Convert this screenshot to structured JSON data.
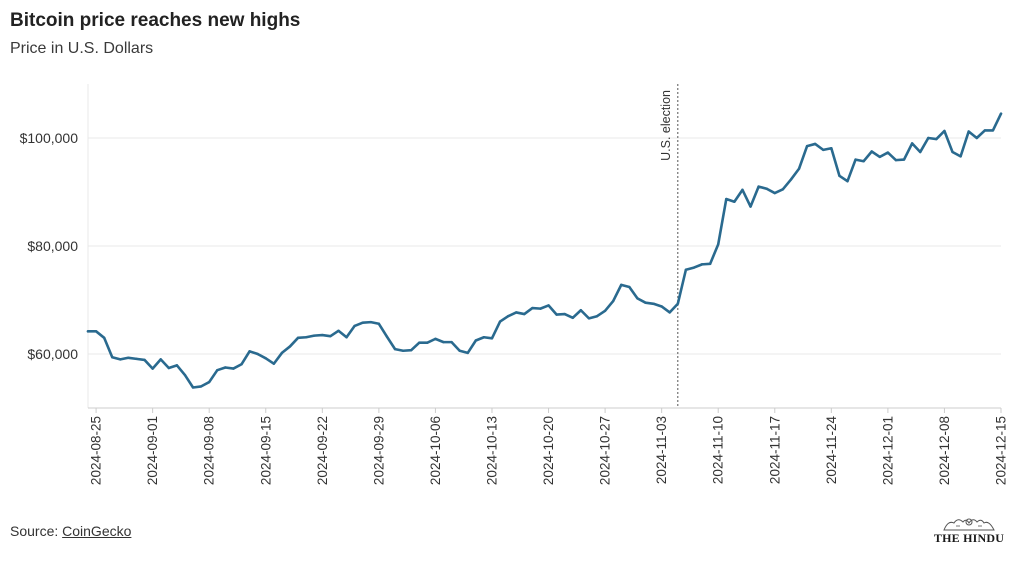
{
  "header": {
    "title": "Bitcoin price reaches new highs",
    "subtitle": "Price in U.S. Dollars"
  },
  "footer": {
    "source_prefix": "Source: ",
    "source_link": "CoinGecko",
    "logo_text": "THE HINDU"
  },
  "colors": {
    "line": "#2a6a8f",
    "grid": "#e8e8e8",
    "axis": "#cccccc",
    "text": "#333333"
  },
  "chart_data": {
    "type": "line",
    "title": "Bitcoin price reaches new highs",
    "subtitle": "Price in U.S. Dollars",
    "xlabel": "",
    "ylabel": "",
    "x_start": "2024-08-24",
    "x_end": "2024-12-15",
    "xlim": [
      "2024-08-24",
      "2024-12-15"
    ],
    "ylim": [
      50000,
      110000
    ],
    "y_ticks": [
      60000,
      80000,
      100000
    ],
    "y_tick_labels": [
      "$60,000",
      "$80,000",
      "$100,000"
    ],
    "x_ticks": [
      "2024-08-25",
      "2024-09-01",
      "2024-09-08",
      "2024-09-15",
      "2024-09-22",
      "2024-09-29",
      "2024-10-06",
      "2024-10-13",
      "2024-10-20",
      "2024-10-27",
      "2024-11-03",
      "2024-11-10",
      "2024-11-17",
      "2024-11-24",
      "2024-12-01",
      "2024-12-08",
      "2024-12-15"
    ],
    "grid": "horizontal",
    "annotations": [
      {
        "date": "2024-11-05",
        "label": "U.S. election",
        "style": "dotted vertical line"
      }
    ],
    "series": [
      {
        "name": "",
        "x": [
          "2024-08-24",
          "2024-08-25",
          "2024-08-26",
          "2024-08-27",
          "2024-08-28",
          "2024-08-29",
          "2024-08-30",
          "2024-08-31",
          "2024-09-01",
          "2024-09-02",
          "2024-09-03",
          "2024-09-04",
          "2024-09-05",
          "2024-09-06",
          "2024-09-07",
          "2024-09-08",
          "2024-09-09",
          "2024-09-10",
          "2024-09-11",
          "2024-09-12",
          "2024-09-13",
          "2024-09-14",
          "2024-09-15",
          "2024-09-16",
          "2024-09-17",
          "2024-09-18",
          "2024-09-19",
          "2024-09-20",
          "2024-09-21",
          "2024-09-22",
          "2024-09-23",
          "2024-09-24",
          "2024-09-25",
          "2024-09-26",
          "2024-09-27",
          "2024-09-28",
          "2024-09-29",
          "2024-09-30",
          "2024-10-01",
          "2024-10-02",
          "2024-10-03",
          "2024-10-04",
          "2024-10-05",
          "2024-10-06",
          "2024-10-07",
          "2024-10-08",
          "2024-10-09",
          "2024-10-10",
          "2024-10-11",
          "2024-10-12",
          "2024-10-13",
          "2024-10-14",
          "2024-10-15",
          "2024-10-16",
          "2024-10-17",
          "2024-10-18",
          "2024-10-19",
          "2024-10-20",
          "2024-10-21",
          "2024-10-22",
          "2024-10-23",
          "2024-10-24",
          "2024-10-25",
          "2024-10-26",
          "2024-10-27",
          "2024-10-28",
          "2024-10-29",
          "2024-10-30",
          "2024-10-31",
          "2024-11-01",
          "2024-11-02",
          "2024-11-03",
          "2024-11-04",
          "2024-11-05",
          "2024-11-06",
          "2024-11-07",
          "2024-11-08",
          "2024-11-09",
          "2024-11-10",
          "2024-11-11",
          "2024-11-12",
          "2024-11-13",
          "2024-11-14",
          "2024-11-15",
          "2024-11-16",
          "2024-11-17",
          "2024-11-18",
          "2024-11-19",
          "2024-11-20",
          "2024-11-21",
          "2024-11-22",
          "2024-11-23",
          "2024-11-24",
          "2024-11-25",
          "2024-11-26",
          "2024-11-27",
          "2024-11-28",
          "2024-11-29",
          "2024-11-30",
          "2024-12-01",
          "2024-12-02",
          "2024-12-03",
          "2024-12-04",
          "2024-12-05",
          "2024-12-06",
          "2024-12-07",
          "2024-12-08",
          "2024-12-09",
          "2024-12-10",
          "2024-12-11",
          "2024-12-12",
          "2024-12-13",
          "2024-12-14",
          "2024-12-15"
        ],
        "values": [
          64200,
          64200,
          63000,
          59400,
          59000,
          59300,
          59100,
          58900,
          57300,
          59000,
          57400,
          57900,
          56100,
          53800,
          54000,
          54800,
          57000,
          57500,
          57300,
          58100,
          60500,
          60000,
          59200,
          58200,
          60200,
          61400,
          63000,
          63100,
          63400,
          63500,
          63300,
          64300,
          63100,
          65200,
          65800,
          65900,
          65600,
          63200,
          60900,
          60600,
          60700,
          62100,
          62100,
          62800,
          62200,
          62200,
          60600,
          60200,
          62500,
          63100,
          62900,
          66000,
          67000,
          67700,
          67400,
          68500,
          68400,
          69000,
          67300,
          67400,
          66700,
          68100,
          66600,
          67000,
          68000,
          69800,
          72800,
          72400,
          70300,
          69500,
          69300,
          68800,
          67700,
          69300,
          75600,
          76000,
          76600,
          76700,
          80300,
          88700,
          88200,
          90400,
          87300,
          91000,
          90600,
          89800,
          90500,
          92300,
          94300,
          98500,
          98900,
          97800,
          98100,
          93000,
          92000,
          96000,
          95700,
          97500,
          96500,
          97300,
          95900,
          96000,
          99000,
          97400,
          100000,
          99800,
          101300,
          97400,
          96600,
          101200,
          100000,
          101400,
          101400,
          104500
        ]
      }
    ]
  }
}
